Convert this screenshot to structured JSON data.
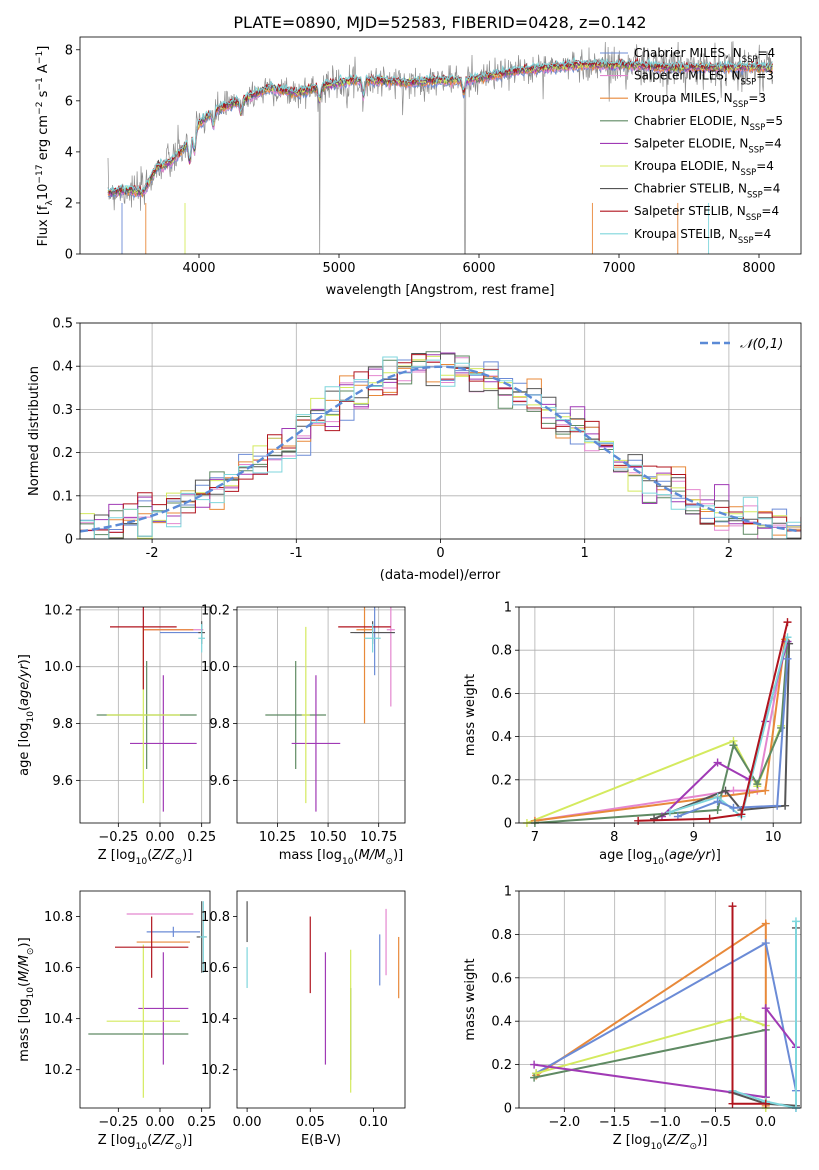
{
  "figure_title": "PLATE=0890, MJD=52583, FIBERID=0428, z=0.142",
  "series_styles": [
    {
      "name": "Chabrier MILES",
      "nssp": "4",
      "color": "#6b8bd6"
    },
    {
      "name": "Salpeter MILES",
      "nssp": "3",
      "color": "#e486cf"
    },
    {
      "name": "Kroupa MILES",
      "nssp": "3",
      "color": "#e8893a"
    },
    {
      "name": "Chabrier ELODIE",
      "nssp": "5",
      "color": "#5f8a63"
    },
    {
      "name": "Salpeter ELODIE",
      "nssp": "4",
      "color": "#a03ab5"
    },
    {
      "name": "Kroupa ELODIE",
      "nssp": "4",
      "color": "#d4ea5e"
    },
    {
      "name": "Chabrier STELIB",
      "nssp": "4",
      "color": "#555555"
    },
    {
      "name": "Salpeter STELIB",
      "nssp": "4",
      "color": "#b0141e"
    },
    {
      "name": "Kroupa STELIB",
      "nssp": "4",
      "color": "#7fd6dc"
    }
  ],
  "chart_data": [
    {
      "id": "spectrum",
      "type": "line",
      "title": "PLATE=0890, MJD=52583, FIBERID=0428, z=0.142",
      "xlabel": "wavelength [Angstrom, rest frame]",
      "ylabel": "Flux [f_λ 10^-17 erg cm^-2 s^-1 A^-1]",
      "xlim": [
        3150,
        8300
      ],
      "ylim": [
        0,
        8.5
      ],
      "xticks": [
        4000,
        5000,
        6000,
        7000,
        8000
      ],
      "yticks": [
        0,
        2,
        4,
        6,
        8
      ],
      "data_color": "#8c8c8c",
      "anchors_x": [
        3350,
        3500,
        3600,
        3700,
        3800,
        3900,
        4000,
        4100,
        4300,
        4500,
        4700,
        4900,
        5100,
        5300,
        5500,
        5700,
        5900,
        6100,
        6300,
        6500,
        6700,
        6900,
        7100,
        7300,
        7500,
        7700,
        7900,
        8100
      ],
      "anchors_y": [
        2.4,
        2.5,
        2.4,
        3.4,
        3.6,
        4.2,
        5.1,
        5.6,
        6.0,
        6.5,
        6.3,
        6.6,
        6.8,
        6.8,
        6.7,
        6.8,
        6.8,
        7.0,
        7.2,
        7.3,
        7.4,
        7.4,
        7.4,
        7.3,
        7.3,
        7.3,
        7.3,
        7.3
      ],
      "legend_position": "upper-right",
      "grid": false
    },
    {
      "id": "residuals",
      "type": "step-histogram",
      "xlabel": "(data-model)/error",
      "ylabel": "Normed distribution",
      "xlim": [
        -2.5,
        2.5
      ],
      "ylim": [
        0,
        0.5
      ],
      "xticks": [
        -2,
        -1,
        0,
        1,
        2
      ],
      "yticks": [
        0.0,
        0.1,
        0.2,
        0.3,
        0.4,
        0.5
      ],
      "bin_width": 0.1,
      "reference_label": "𝒩(0,1)",
      "reference_color": "#5b8ad6",
      "legend_position": "upper-right",
      "grid": true
    },
    {
      "id": "age-vs-Z",
      "type": "errorbar",
      "xlabel": "Z [log10(Z/Z⊙)]",
      "ylabel": "age [log10(age/yr)]",
      "xlim": [
        -0.48,
        0.3
      ],
      "ylim": [
        9.45,
        10.21
      ],
      "xticks": [
        -0.25,
        0.0,
        0.25
      ],
      "xtick_labels": [
        "−0.25",
        "0.00",
        "0.25"
      ],
      "yticks": [
        9.6,
        9.8,
        10.0,
        10.2
      ],
      "ytick_labels": [
        "9.6",
        "9.8",
        "10.0",
        "10.2"
      ],
      "points": [
        {
          "color": "#6b8bd6",
          "x": 0.12,
          "xerr": 0.12,
          "y": 10.12,
          "yerr": 0.0
        },
        {
          "color": "#e486cf",
          "x": 0.08,
          "xerr": 0.18,
          "y": 10.13,
          "yerr": 0.0
        },
        {
          "color": "#e8893a",
          "x": 0.05,
          "xerr": 0.15,
          "y": 10.13,
          "yerr": 0.0
        },
        {
          "color": "#5f8a63",
          "x": -0.08,
          "xerr": 0.3,
          "y": 9.83,
          "yerr": 0.19
        },
        {
          "color": "#a03ab5",
          "x": 0.02,
          "xerr": 0.2,
          "y": 9.73,
          "yerr": 0.24
        },
        {
          "color": "#d4ea5e",
          "x": -0.1,
          "xerr": 0.22,
          "y": 9.83,
          "yerr": 0.31
        },
        {
          "color": "#555555",
          "x": 0.25,
          "xerr": 0.02,
          "y": 10.12,
          "yerr": 0.04
        },
        {
          "color": "#b0141e",
          "x": -0.1,
          "xerr": 0.2,
          "y": 10.14,
          "yerr": 0.22
        },
        {
          "color": "#7fd6dc",
          "x": 0.25,
          "xerr": 0.02,
          "y": 10.1,
          "yerr": 0.05
        }
      ],
      "grid": true
    },
    {
      "id": "age-vs-mass",
      "type": "errorbar",
      "xlabel": "mass [log10(M/M⊙)]",
      "ylabel": "",
      "xlim": [
        10.05,
        10.88
      ],
      "ylim": [
        9.45,
        10.21
      ],
      "xticks": [
        10.25,
        10.5,
        10.75
      ],
      "xtick_labels": [
        "10.25",
        "10.50",
        "10.75"
      ],
      "yticks": [
        9.6,
        9.8,
        10.0,
        10.2
      ],
      "ytick_labels": [
        "9.6",
        "9.8",
        "10.0",
        "10.2"
      ],
      "points": [
        {
          "color": "#6b8bd6",
          "x": 10.73,
          "xerr": 0.1,
          "y": 10.12,
          "yerr": 0.15
        },
        {
          "color": "#e486cf",
          "x": 10.81,
          "xerr": 0.02,
          "y": 10.13,
          "yerr": 0.27
        },
        {
          "color": "#e8893a",
          "x": 10.68,
          "xerr": 0.04,
          "y": 10.13,
          "yerr": 0.33
        },
        {
          "color": "#5f8a63",
          "x": 10.34,
          "xerr": 0.15,
          "y": 9.83,
          "yerr": 0.19
        },
        {
          "color": "#a03ab5",
          "x": 10.44,
          "xerr": 0.12,
          "y": 9.73,
          "yerr": 0.24
        },
        {
          "color": "#d4ea5e",
          "x": 10.39,
          "xerr": 0.02,
          "y": 9.83,
          "yerr": 0.31
        },
        {
          "color": "#555555",
          "x": 10.72,
          "xerr": 0.11,
          "y": 10.12,
          "yerr": 0.04
        },
        {
          "color": "#b0141e",
          "x": 10.68,
          "xerr": 0.13,
          "y": 10.14,
          "yerr": 0.0
        },
        {
          "color": "#7fd6dc",
          "x": 10.72,
          "xerr": 0.04,
          "y": 10.1,
          "yerr": 0.05
        }
      ],
      "grid": true
    },
    {
      "id": "weight-vs-age",
      "type": "line",
      "xlabel": "age [log10(age/yr)]",
      "ylabel": "mass weight",
      "xlim": [
        6.8,
        10.35
      ],
      "ylim": [
        0,
        1.0
      ],
      "xticks": [
        7,
        8,
        9,
        10
      ],
      "yticks": [
        0.0,
        0.2,
        0.4,
        0.6,
        0.8,
        1.0
      ],
      "series": [
        {
          "color": "#e486cf",
          "x": [
            7.0,
            9.5,
            9.8,
            10.15
          ],
          "y": [
            0.01,
            0.15,
            0.15,
            0.84
          ]
        },
        {
          "color": "#d4ea5e",
          "x": [
            6.9,
            9.5,
            9.8,
            10.1
          ],
          "y": [
            0.0,
            0.38,
            0.17,
            0.45
          ]
        },
        {
          "color": "#e8893a",
          "x": [
            7.0,
            9.7,
            9.9,
            10.15
          ],
          "y": [
            0.01,
            0.14,
            0.15,
            0.85
          ]
        },
        {
          "color": "#5f8a63",
          "x": [
            7.0,
            9.3,
            9.5,
            9.8,
            10.1,
            10.18
          ],
          "y": [
            0.0,
            0.06,
            0.36,
            0.18,
            0.44,
            0.84
          ]
        },
        {
          "color": "#a03ab5",
          "x": [
            8.6,
            9.3,
            9.7,
            9.9,
            10.18
          ],
          "y": [
            0.03,
            0.28,
            0.2,
            0.47,
            0.84
          ]
        },
        {
          "color": "#555555",
          "x": [
            8.5,
            9.4,
            9.6,
            10.15,
            10.2
          ],
          "y": [
            0.02,
            0.15,
            0.06,
            0.08,
            0.83
          ]
        },
        {
          "color": "#7fd6dc",
          "x": [
            8.7,
            9.3,
            9.6,
            10.18
          ],
          "y": [
            0.05,
            0.12,
            0.03,
            0.86
          ]
        },
        {
          "color": "#6b8bd6",
          "x": [
            8.8,
            9.3,
            9.5,
            10.05,
            10.18
          ],
          "y": [
            0.03,
            0.1,
            0.07,
            0.08,
            0.76
          ]
        },
        {
          "color": "#b0141e",
          "x": [
            8.3,
            9.2,
            9.6,
            10.18
          ],
          "y": [
            0.01,
            0.02,
            0.04,
            0.93
          ]
        }
      ],
      "grid": true
    },
    {
      "id": "mass-vs-Z",
      "type": "errorbar",
      "xlabel": "Z [log10(Z/Z⊙)]",
      "ylabel": "mass [log10(M/M⊙)]",
      "xlim": [
        -0.48,
        0.3
      ],
      "ylim": [
        10.05,
        10.9
      ],
      "xticks": [
        -0.25,
        0.0,
        0.25
      ],
      "xtick_labels": [
        "−0.25",
        "0.00",
        "0.25"
      ],
      "yticks": [
        10.2,
        10.4,
        10.6,
        10.8
      ],
      "ytick_labels": [
        "10.2",
        "10.4",
        "10.6",
        "10.8"
      ],
      "points": [
        {
          "color": "#6b8bd6",
          "x": 0.08,
          "xerr": 0.16,
          "y": 10.74,
          "yerr": 0.02
        },
        {
          "color": "#e486cf",
          "x": 0.0,
          "xerr": 0.2,
          "y": 10.81,
          "yerr": 0.0
        },
        {
          "color": "#e8893a",
          "x": 0.02,
          "xerr": 0.16,
          "y": 10.7,
          "yerr": 0.0
        },
        {
          "color": "#5f8a63",
          "x": -0.13,
          "xerr": 0.3,
          "y": 10.34,
          "yerr": 0.0
        },
        {
          "color": "#a03ab5",
          "x": 0.02,
          "xerr": 0.15,
          "y": 10.44,
          "yerr": 0.22
        },
        {
          "color": "#d4ea5e",
          "x": -0.1,
          "xerr": 0.22,
          "y": 10.39,
          "yerr": 0.3
        },
        {
          "color": "#555555",
          "x": 0.25,
          "xerr": 0.03,
          "y": 10.72,
          "yerr": 0.14
        },
        {
          "color": "#b0141e",
          "x": -0.05,
          "xerr": 0.22,
          "y": 10.68,
          "yerr": 0.12
        },
        {
          "color": "#7fd6dc",
          "x": 0.26,
          "xerr": 0.02,
          "y": 10.72,
          "yerr": 0.14
        }
      ],
      "grid": false
    },
    {
      "id": "mass-vs-EBV",
      "type": "errorbar",
      "xlabel": "E(B-V)",
      "ylabel": "",
      "xlim": [
        -0.008,
        0.125
      ],
      "ylim": [
        10.05,
        10.9
      ],
      "xticks": [
        0.0,
        0.05,
        0.1
      ],
      "xtick_labels": [
        "0.00",
        "0.05",
        "0.10"
      ],
      "yticks": [
        10.2,
        10.4,
        10.6,
        10.8
      ],
      "ytick_labels": [
        "10.2",
        "10.4",
        "10.6",
        "10.8"
      ],
      "points": [
        {
          "color": "#6b8bd6",
          "x": 0.105,
          "xerr": 0.0,
          "y": 10.63,
          "yerr": 0.1
        },
        {
          "color": "#e486cf",
          "x": 0.11,
          "xerr": 0.0,
          "y": 10.7,
          "yerr": 0.13
        },
        {
          "color": "#e8893a",
          "x": 0.12,
          "xerr": 0.0,
          "y": 10.6,
          "yerr": 0.12
        },
        {
          "color": "#5f8a63",
          "x": 0.082,
          "xerr": 0.0,
          "y": 10.34,
          "yerr": 0.18
        },
        {
          "color": "#a03ab5",
          "x": 0.062,
          "xerr": 0.0,
          "y": 10.44,
          "yerr": 0.22
        },
        {
          "color": "#d4ea5e",
          "x": 0.082,
          "xerr": 0.0,
          "y": 10.39,
          "yerr": 0.28
        },
        {
          "color": "#555555",
          "x": 0.0,
          "xerr": 0.0,
          "y": 10.78,
          "yerr": 0.08
        },
        {
          "color": "#b0141e",
          "x": 0.05,
          "xerr": 0.0,
          "y": 10.65,
          "yerr": 0.15
        },
        {
          "color": "#7fd6dc",
          "x": 0.0,
          "xerr": 0.0,
          "y": 10.6,
          "yerr": 0.08
        }
      ],
      "grid": false
    },
    {
      "id": "weight-vs-Z",
      "type": "line",
      "xlabel": "Z [log10(Z/Z⊙)]",
      "ylabel": "mass weight",
      "xlim": [
        -2.45,
        0.35
      ],
      "ylim": [
        0,
        1.0
      ],
      "xticks": [
        -2.0,
        -1.5,
        -1.0,
        -0.5,
        0.0
      ],
      "xtick_labels": [
        "−2.0",
        "−1.5",
        "−1.0",
        "−0.5",
        "0.0"
      ],
      "yticks": [
        0.0,
        0.2,
        0.4,
        0.6,
        0.8,
        1.0
      ],
      "series": [
        {
          "color": "#e8893a",
          "x": [
            -2.28,
            0.0,
            0.0
          ],
          "y": [
            0.15,
            0.85,
            0.01
          ]
        },
        {
          "color": "#6b8bd6",
          "x": [
            -2.28,
            0.0,
            0.3,
            0.3
          ],
          "y": [
            0.16,
            0.76,
            0.08,
            0.0
          ]
        },
        {
          "color": "#d4ea5e",
          "x": [
            -2.28,
            -0.25,
            0.0,
            0.0
          ],
          "y": [
            0.16,
            0.42,
            0.38,
            0.0
          ]
        },
        {
          "color": "#5f8a63",
          "x": [
            -2.3,
            0.0,
            0.0
          ],
          "y": [
            0.14,
            0.36,
            0.05
          ]
        },
        {
          "color": "#a03ab5",
          "x": [
            -2.3,
            0.0,
            0.0,
            0.3
          ],
          "y": [
            0.2,
            0.05,
            0.46,
            0.28
          ]
        },
        {
          "color": "#555555",
          "x": [
            -0.33,
            0.0,
            0.3,
            0.3
          ],
          "y": [
            0.07,
            0.02,
            0.01,
            0.83
          ]
        },
        {
          "color": "#7fd6dc",
          "x": [
            -0.33,
            0.0,
            0.3,
            0.3
          ],
          "y": [
            0.08,
            0.03,
            0.0,
            0.86
          ]
        },
        {
          "color": "#b0141e",
          "x": [
            -0.33,
            -0.33,
            0.0
          ],
          "y": [
            0.93,
            0.02,
            0.02
          ]
        }
      ],
      "grid": true
    }
  ]
}
